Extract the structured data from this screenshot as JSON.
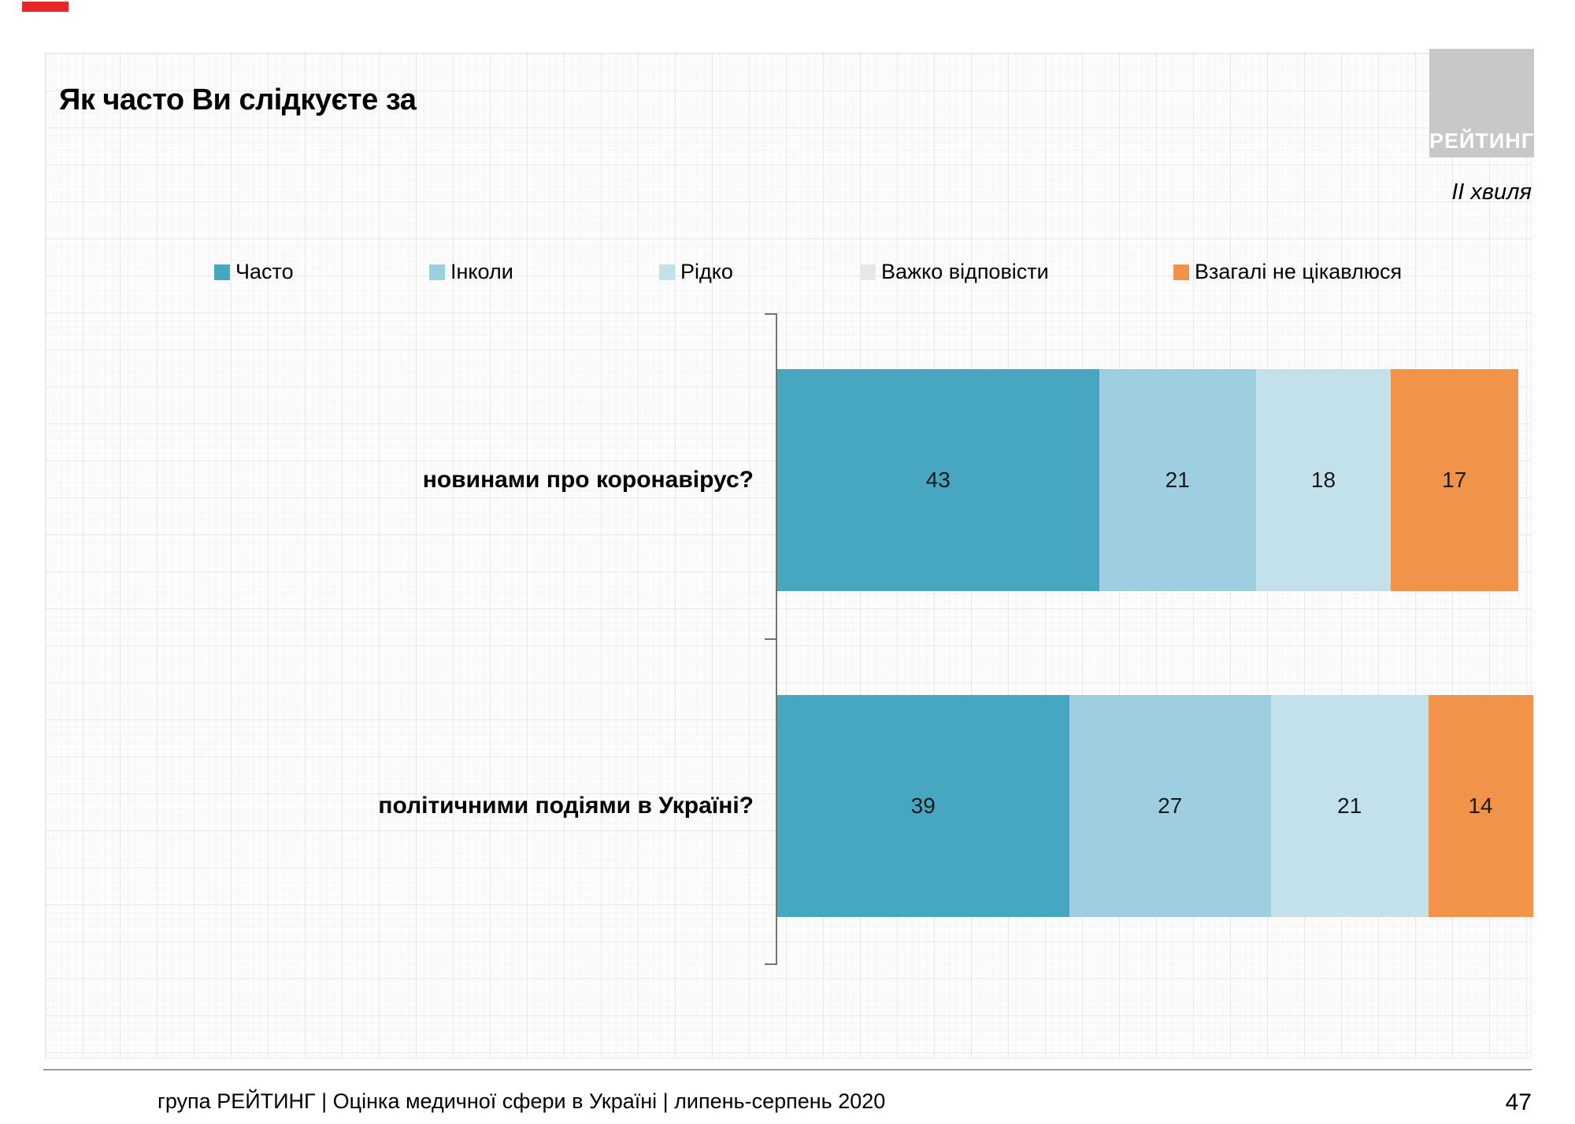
{
  "header": {
    "title": "Як часто Ви слідкуєте за",
    "wave_label": "ІІ хвиля",
    "logo_text": "РЕЙТИНГ"
  },
  "footer": {
    "text": "група РЕЙТИНГ  |  Оцінка медичної сфери в Україні  |  липень-серпень 2020",
    "page_number": "47"
  },
  "chart_data": {
    "type": "bar",
    "orientation": "horizontal",
    "stacked": true,
    "title": "Як часто Ви слідкуєте за",
    "categories": [
      "новинами про коронавірус?",
      "політичними подіями в Україні?"
    ],
    "series": [
      {
        "name": "Часто",
        "color": "#47a7c1",
        "values": [
          43,
          39
        ]
      },
      {
        "name": "Інколи",
        "color": "#9dcfe0",
        "values": [
          21,
          27
        ]
      },
      {
        "name": "Рідко",
        "color": "#c3e1ea",
        "values": [
          18,
          21
        ]
      },
      {
        "name": "Важко відповісти",
        "color": "#e7e7e7",
        "values": [
          null,
          null
        ]
      },
      {
        "name": "Взагалі не цікавлюся",
        "color": "#f2934a",
        "values": [
          17,
          14
        ]
      }
    ],
    "xlim": [
      0,
      100
    ],
    "legend_position": "top",
    "value_labels": "inside-center",
    "grid": "faint-graph-paper"
  }
}
